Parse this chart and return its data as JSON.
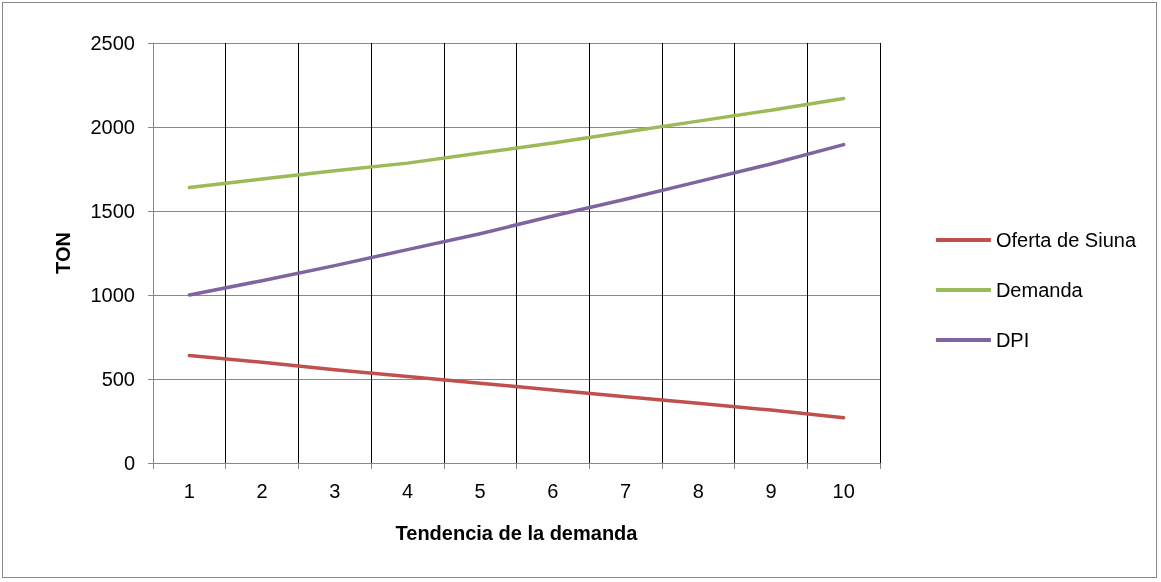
{
  "chart_data": {
    "type": "line",
    "xlabel": "Tendencia de la demanda",
    "ylabel": "TON",
    "categories": [
      "1",
      "2",
      "3",
      "4",
      "5",
      "6",
      "7",
      "8",
      "9",
      "10"
    ],
    "series": [
      {
        "name": "Oferta de Siuna",
        "color": "#c0504d",
        "values": [
          640,
          600,
          555,
          515,
          475,
          435,
          395,
          355,
          315,
          270
        ]
      },
      {
        "name": "Demanda",
        "color": "#9bbb59",
        "values": [
          1640,
          1690,
          1740,
          1785,
          1845,
          1905,
          1970,
          2035,
          2100,
          2170
        ]
      },
      {
        "name": "DPI",
        "color": "#8064a2",
        "values": [
          1000,
          1085,
          1175,
          1270,
          1365,
          1470,
          1570,
          1675,
          1780,
          1895
        ]
      }
    ],
    "ylim": [
      0,
      2500
    ],
    "yticks": [
      0,
      500,
      1000,
      1500,
      2000,
      2500
    ],
    "grid": true,
    "legend": "right",
    "marker": "none",
    "line_style": "solid"
  }
}
